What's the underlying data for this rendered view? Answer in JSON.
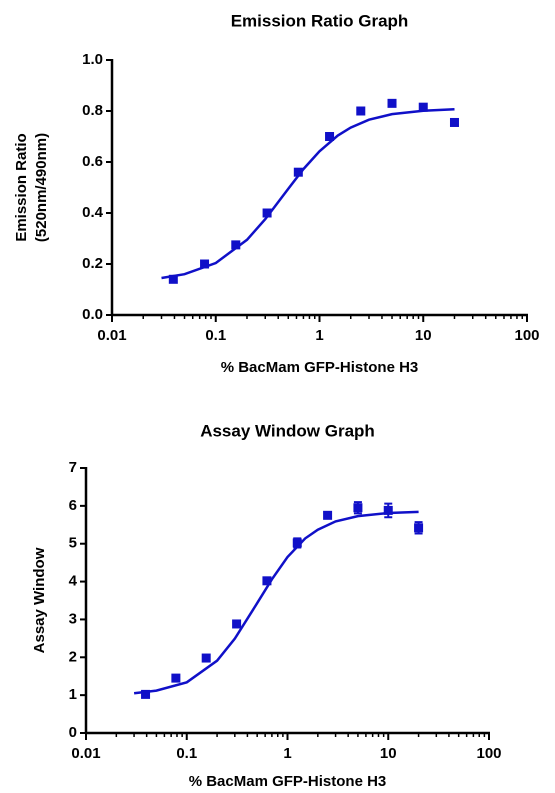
{
  "chart_data": [
    {
      "type": "scatter",
      "title": "Emission Ratio Graph",
      "xlabel": "% BacMam GFP-Histone H3",
      "ylabel": [
        "Emission Ratio",
        "(520nm/490nm)"
      ],
      "xscale": "log",
      "xlim": [
        0.01,
        100
      ],
      "xticks": [
        0.01,
        0.1,
        1,
        10,
        100
      ],
      "ylim": [
        0,
        1
      ],
      "yticks": [
        {
          "value": 0,
          "label": "0.0"
        },
        0.2,
        0.4,
        0.6,
        0.8,
        {
          "value": 1,
          "label": "1.0"
        }
      ],
      "color": "#1010c8",
      "x": [
        0.039,
        0.078,
        0.156,
        0.3125,
        0.625,
        1.25,
        2.5,
        5,
        10,
        20
      ],
      "values": [
        0.14,
        0.2,
        0.275,
        0.4,
        0.56,
        0.7,
        0.8,
        0.83,
        0.815,
        0.755
      ],
      "fit": {
        "x": [
          0.03,
          0.05,
          0.1,
          0.2,
          0.3,
          0.5,
          0.7,
          1,
          1.5,
          2,
          3,
          5,
          10,
          20
        ],
        "values": [
          0.145,
          0.16,
          0.204,
          0.295,
          0.376,
          0.495,
          0.572,
          0.642,
          0.704,
          0.735,
          0.766,
          0.788,
          0.801,
          0.807
        ]
      }
    },
    {
      "type": "scatter",
      "title": "Assay Window Graph",
      "xlabel": "% BacMam GFP-Histone H3",
      "ylabel": [
        "Assay Window"
      ],
      "xscale": "log",
      "xlim": [
        0.01,
        100
      ],
      "xticks": [
        0.01,
        0.1,
        1,
        10,
        100
      ],
      "ylim": [
        0,
        7
      ],
      "yticks": [
        0,
        1,
        2,
        3,
        4,
        5,
        6,
        7
      ],
      "color": "#1010c8",
      "x": [
        0.039,
        0.078,
        0.156,
        0.3125,
        0.625,
        1.25,
        2.5,
        5,
        10,
        20
      ],
      "values": [
        1.02,
        1.45,
        1.98,
        2.88,
        4.02,
        5.02,
        5.75,
        5.95,
        5.88,
        5.42
      ],
      "errors": [
        0.05,
        0.05,
        0.05,
        0.08,
        0.07,
        0.12,
        0.08,
        0.15,
        0.18,
        0.15
      ],
      "fit": {
        "x": [
          0.03,
          0.05,
          0.1,
          0.2,
          0.3,
          0.5,
          0.7,
          1,
          1.5,
          2,
          3,
          5,
          10,
          20
        ],
        "values": [
          1.05,
          1.12,
          1.34,
          1.91,
          2.49,
          3.43,
          4.06,
          4.65,
          5.14,
          5.37,
          5.59,
          5.73,
          5.81,
          5.84
        ]
      }
    }
  ]
}
